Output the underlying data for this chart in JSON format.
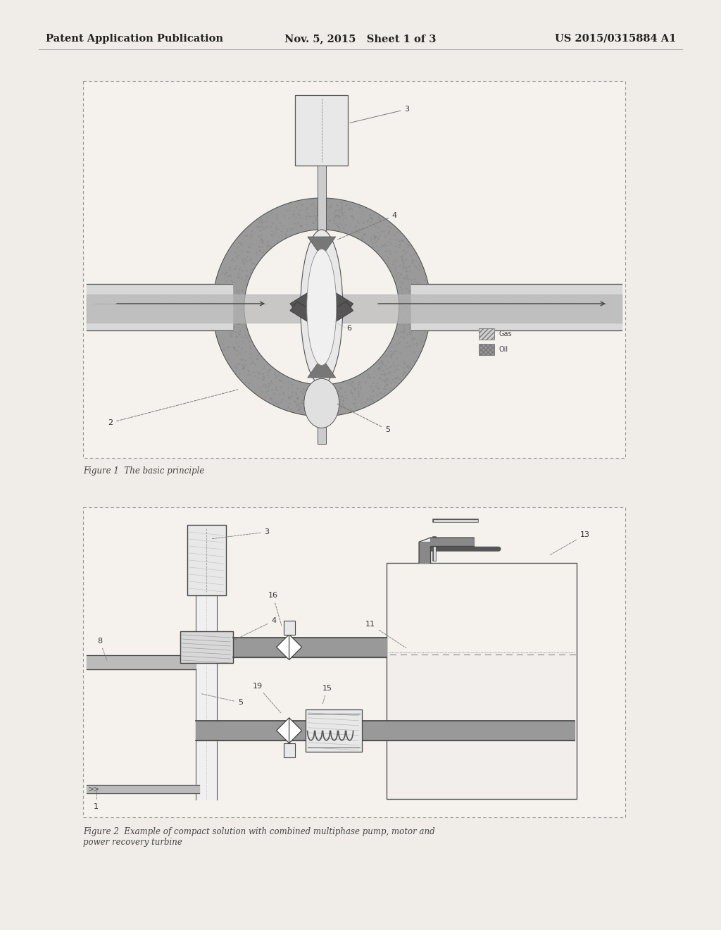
{
  "bg_color": "#f0ede8",
  "header": {
    "left": "Patent Application Publication",
    "center": "Nov. 5, 2015   Sheet 1 of 3",
    "right": "US 2015/0315884 A1",
    "fontsize": 10.5
  },
  "fig1_caption": "Figure 1  The basic principle",
  "fig2_caption": "Figure 2  Example of compact solution with combined multiphase pump, motor and\npower recovery turbine",
  "line_color": "#555555",
  "box_bg": "#f5f2ee",
  "dark_gray": "#888888",
  "med_gray": "#aaaaaa",
  "light_gray": "#d8d8d8",
  "very_light": "#e8e8e8"
}
